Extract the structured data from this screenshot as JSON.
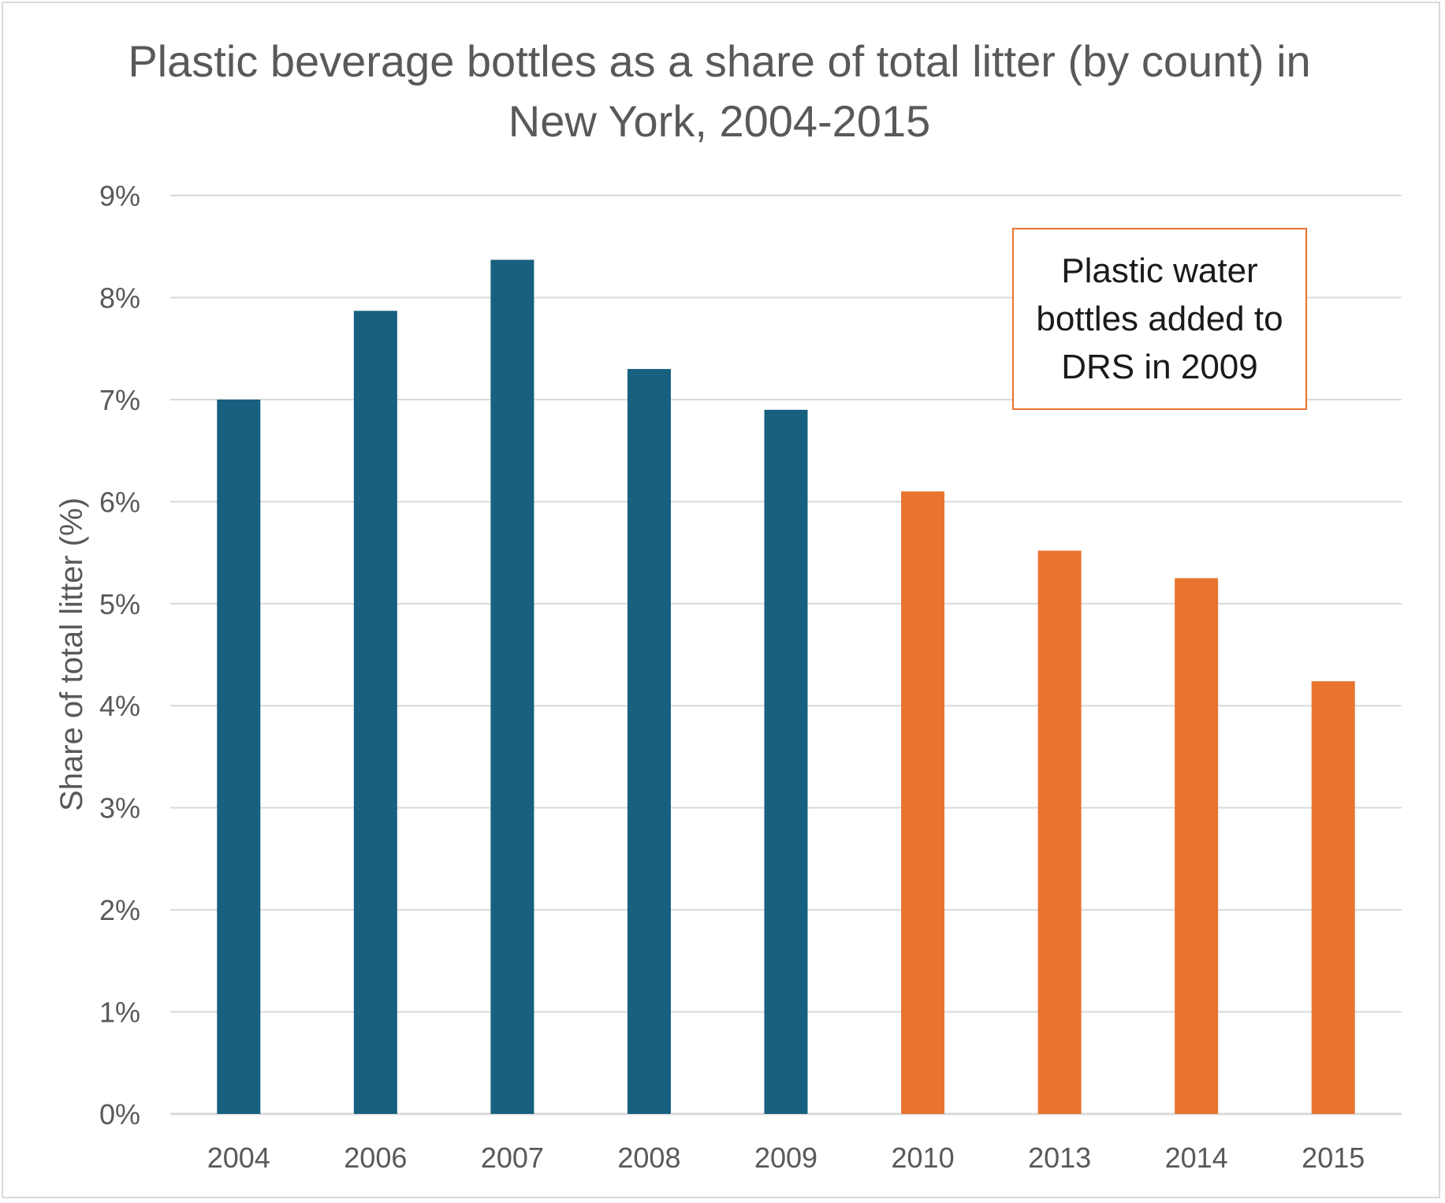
{
  "chart_data": {
    "type": "bar",
    "title_lines": [
      "Plastic beverage bottles as a share of total litter (by count) in",
      "New York, 2004-2015"
    ],
    "xlabel": "",
    "ylabel": "Share of total litter (%)",
    "categories": [
      "2004",
      "2006",
      "2007",
      "2008",
      "2009",
      "2010",
      "2013",
      "2014",
      "2015"
    ],
    "values": [
      7.0,
      7.87,
      8.37,
      7.3,
      6.9,
      6.1,
      5.52,
      5.25,
      4.24
    ],
    "bar_colors": [
      "#17607f",
      "#17607f",
      "#17607f",
      "#17607f",
      "#17607f",
      "#e8742f",
      "#e8742f",
      "#e8742f",
      "#e8742f"
    ],
    "ylim": [
      0,
      9
    ],
    "yticks": [
      "0%",
      "1%",
      "2%",
      "3%",
      "4%",
      "5%",
      "6%",
      "7%",
      "8%",
      "9%"
    ],
    "grid": true,
    "annotation": "Plastic water bottles added to DRS in 2009"
  },
  "colors": {
    "pre_2010": "#17607f",
    "post_2009": "#e8742f",
    "annotation_border": "#e8742f",
    "gridline": "#d9d9d9"
  }
}
